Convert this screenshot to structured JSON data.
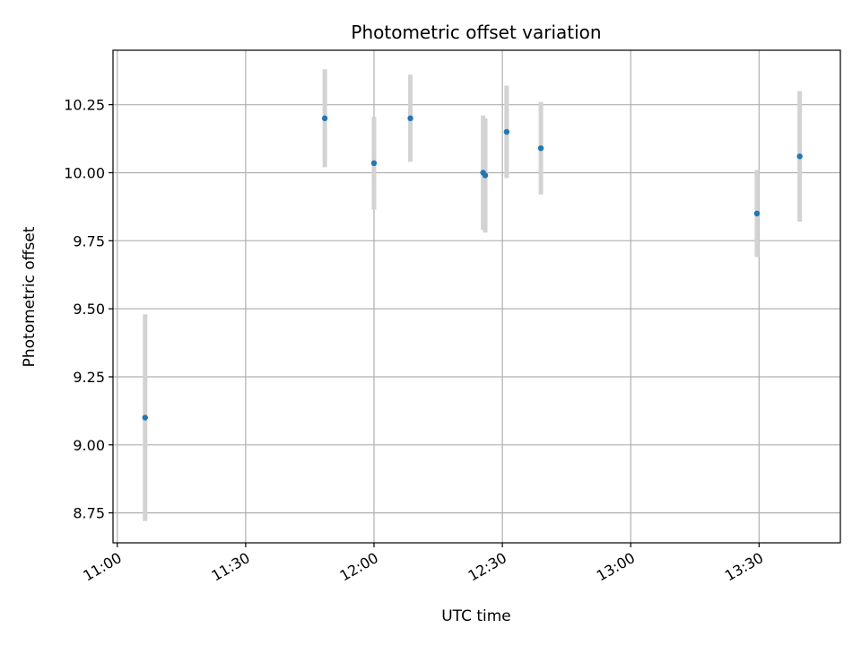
{
  "chart_data": {
    "type": "scatter",
    "title": "Photometric offset variation",
    "xlabel": "UTC time",
    "ylabel": "Photometric offset",
    "x_is_time": true,
    "xlim": [
      "10:59",
      "13:49"
    ],
    "ylim": [
      8.64,
      10.45
    ],
    "xticks": [
      "11:00",
      "11:30",
      "12:00",
      "12:30",
      "13:00",
      "13:30"
    ],
    "yticks": [
      8.75,
      9.0,
      9.25,
      9.5,
      9.75,
      10.0,
      10.25
    ],
    "ytick_labels": [
      "8.75",
      "9.00",
      "9.25",
      "9.50",
      "9.75",
      "10.00",
      "10.25"
    ],
    "grid": true,
    "series": [
      {
        "marker_color": "#1f77b4",
        "error_color": "#d3d3d3",
        "points": [
          {
            "x": "11:06:30",
            "y": 9.1,
            "err": 0.38
          },
          {
            "x": "11:48:30",
            "y": 10.2,
            "err": 0.18
          },
          {
            "x": "12:00:00",
            "y": 10.035,
            "err": 0.17
          },
          {
            "x": "12:08:30",
            "y": 10.2,
            "err": 0.16
          },
          {
            "x": "12:25:30",
            "y": 10.0,
            "err": 0.21
          },
          {
            "x": "12:26:00",
            "y": 9.99,
            "err": 0.21
          },
          {
            "x": "12:31:00",
            "y": 10.15,
            "err": 0.17
          },
          {
            "x": "12:39:00",
            "y": 10.09,
            "err": 0.17
          },
          {
            "x": "13:29:30",
            "y": 9.85,
            "err": 0.16
          },
          {
            "x": "13:39:30",
            "y": 10.06,
            "err": 0.24
          }
        ]
      }
    ]
  }
}
